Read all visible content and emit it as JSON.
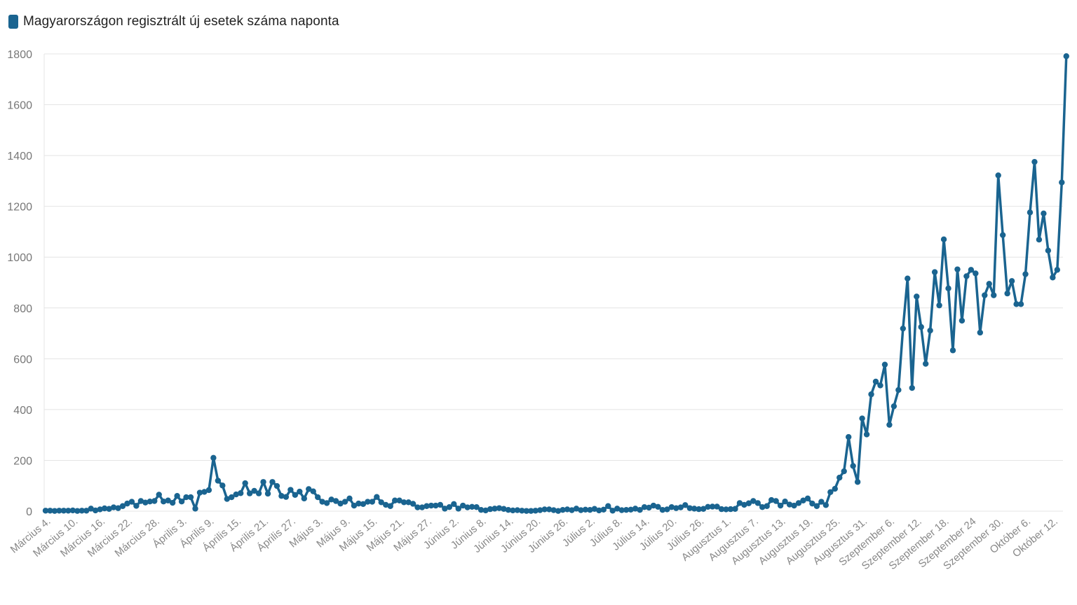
{
  "chart_data": {
    "type": "line",
    "legend": {
      "label": "Magyarországon regisztrált új esetek száma naponta",
      "position": "top-left"
    },
    "title": "",
    "xlabel": "",
    "ylabel": "",
    "color": "#1a6490",
    "grid": true,
    "ylim": [
      0,
      1800
    ],
    "yticks": [
      0,
      200,
      400,
      600,
      800,
      1000,
      1200,
      1400,
      1600,
      1800
    ],
    "start_date": "2020-03-04",
    "tick_labels": [
      {
        "day": 0,
        "label": "Március 4."
      },
      {
        "day": 6,
        "label": "Március 10."
      },
      {
        "day": 12,
        "label": "Március 16."
      },
      {
        "day": 18,
        "label": "Március 22."
      },
      {
        "day": 24,
        "label": "Március 28."
      },
      {
        "day": 30,
        "label": "Április 3."
      },
      {
        "day": 36,
        "label": "Április 9."
      },
      {
        "day": 42,
        "label": "Április 15."
      },
      {
        "day": 48,
        "label": "Április 21."
      },
      {
        "day": 54,
        "label": "Április 27."
      },
      {
        "day": 60,
        "label": "Május 3."
      },
      {
        "day": 66,
        "label": "Május 9."
      },
      {
        "day": 72,
        "label": "Május 15."
      },
      {
        "day": 78,
        "label": "Május 21."
      },
      {
        "day": 84,
        "label": "Május 27."
      },
      {
        "day": 90,
        "label": "Június 2."
      },
      {
        "day": 96,
        "label": "Június 8."
      },
      {
        "day": 102,
        "label": "Június 14."
      },
      {
        "day": 108,
        "label": "Június 20."
      },
      {
        "day": 114,
        "label": "Június 26."
      },
      {
        "day": 120,
        "label": "Július 2."
      },
      {
        "day": 126,
        "label": "Július 8."
      },
      {
        "day": 132,
        "label": "Július 14."
      },
      {
        "day": 138,
        "label": "Július 20."
      },
      {
        "day": 144,
        "label": "Július 26."
      },
      {
        "day": 150,
        "label": "Augusztus 1."
      },
      {
        "day": 156,
        "label": "Augusztus 7."
      },
      {
        "day": 162,
        "label": "Augusztus 13."
      },
      {
        "day": 168,
        "label": "Augusztus 19."
      },
      {
        "day": 174,
        "label": "Augusztus 25."
      },
      {
        "day": 180,
        "label": "Augusztus 31."
      },
      {
        "day": 186,
        "label": "Szeptember 6."
      },
      {
        "day": 192,
        "label": "Szeptember 12."
      },
      {
        "day": 198,
        "label": "Szeptember 18."
      },
      {
        "day": 204,
        "label": "Szeptember 24"
      },
      {
        "day": 210,
        "label": "Szeptember 30."
      },
      {
        "day": 216,
        "label": "Október 6."
      },
      {
        "day": 222,
        "label": "Október 12."
      }
    ],
    "series": [
      {
        "name": "Magyarországon regisztrált új esetek száma naponta",
        "values": [
          2,
          2,
          1,
          2,
          2,
          2,
          3,
          1,
          2,
          2,
          10,
          3,
          7,
          11,
          9,
          15,
          12,
          20,
          30,
          37,
          21,
          40,
          34,
          38,
          40,
          65,
          38,
          42,
          33,
          60,
          38,
          55,
          55,
          10,
          73,
          76,
          83,
          210,
          120,
          101,
          48,
          55,
          66,
          71,
          110,
          70,
          80,
          70,
          115,
          69,
          115,
          99,
          60,
          56,
          84,
          64,
          77,
          50,
          87,
          78,
          55,
          37,
          32,
          46,
          40,
          30,
          37,
          50,
          22,
          30,
          28,
          37,
          37,
          56,
          35,
          25,
          20,
          42,
          42,
          35,
          35,
          29,
          15,
          15,
          20,
          22,
          22,
          25,
          10,
          16,
          28,
          10,
          22,
          15,
          17,
          16,
          5,
          3,
          8,
          10,
          12,
          9,
          5,
          3,
          4,
          2,
          1,
          1,
          2,
          4,
          7,
          7,
          4,
          1,
          5,
          7,
          4,
          10,
          4,
          6,
          5,
          9,
          3,
          6,
          20,
          2,
          10,
          4,
          5,
          6,
          10,
          5,
          16,
          14,
          22,
          17,
          5,
          7,
          16,
          12,
          15,
          24,
          12,
          10,
          8,
          9,
          17,
          18,
          18,
          8,
          7,
          8,
          9,
          32,
          25,
          31,
          40,
          32,
          16,
          20,
          44,
          40,
          22,
          38,
          26,
          22,
          32,
          42,
          50,
          30,
          20,
          37,
          24,
          75,
          88,
          132,
          157,
          292,
          178,
          115,
          365,
          302,
          460,
          510,
          495,
          577,
          340,
          413,
          477,
          719,
          916,
          485,
          845,
          725,
          580,
          711,
          941,
          810,
          1070,
          877,
          633,
          952,
          750,
          925,
          950,
          936,
          703,
          850,
          895,
          850,
          1322,
          1087,
          857,
          906,
          815,
          815,
          933,
          1176,
          1375,
          1069,
          1172,
          1026,
          920,
          950,
          1294,
          1791
        ]
      }
    ]
  }
}
